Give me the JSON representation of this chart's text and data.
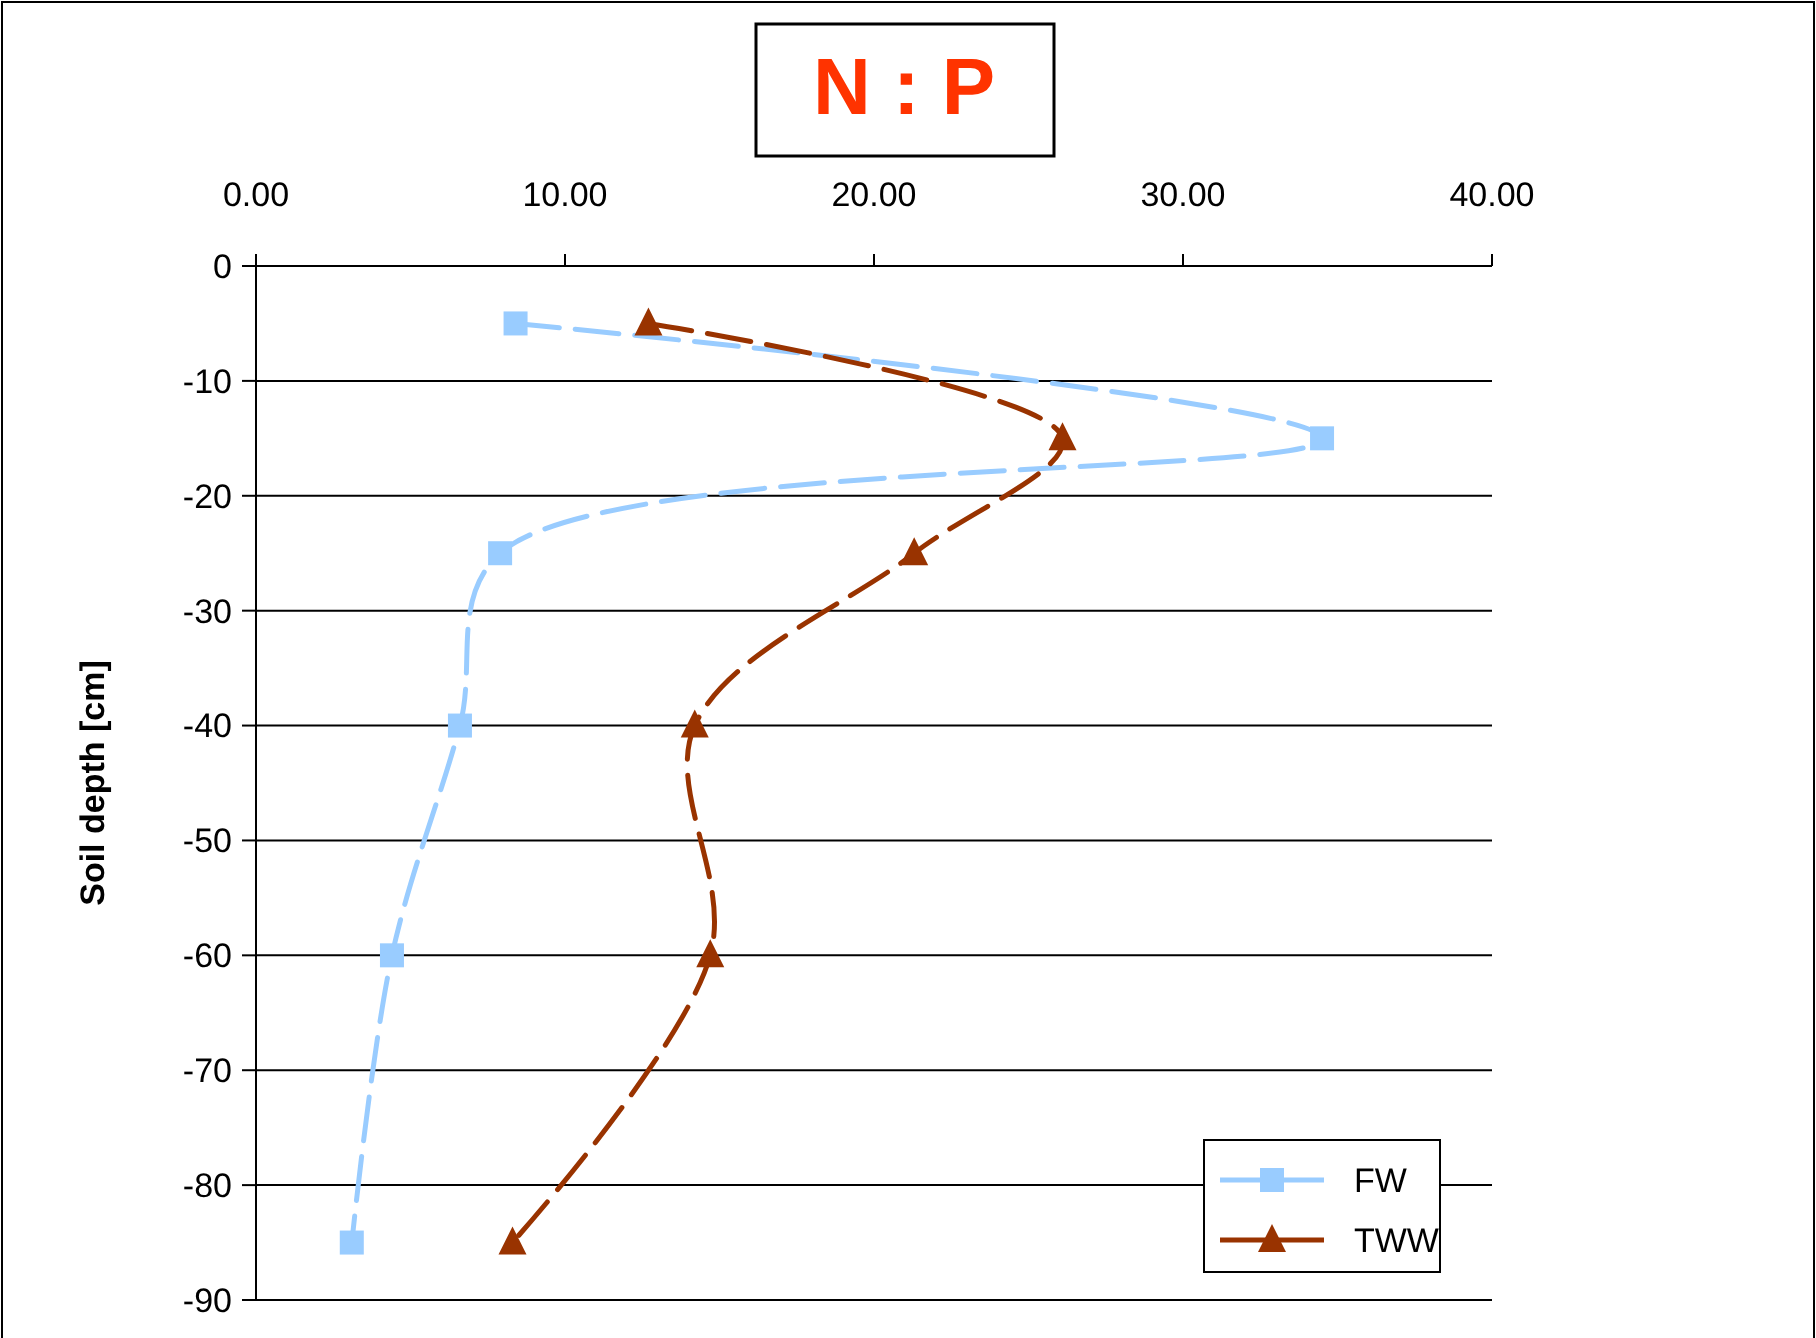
{
  "chart_data": {
    "type": "line",
    "title": "N : P",
    "ylabel": "Soil depth [cm]",
    "xlim": [
      0,
      40
    ],
    "xticks": [
      {
        "value": 0,
        "label": "0.00"
      },
      {
        "value": 10,
        "label": "10.00"
      },
      {
        "value": 20,
        "label": "20.00"
      },
      {
        "value": 30,
        "label": "30.00"
      },
      {
        "value": 40,
        "label": "40.00"
      }
    ],
    "ylim": [
      -90,
      0
    ],
    "yticks": [
      0,
      -10,
      -20,
      -30,
      -40,
      -50,
      -60,
      -70,
      -80,
      -90
    ],
    "grid": "y",
    "legend": "bottom right",
    "line_style": "dashed",
    "series": [
      {
        "name": "FW",
        "color": "#99ccff",
        "marker": "square",
        "x": [
          8.4,
          34.5,
          7.9,
          6.6,
          4.4,
          3.1
        ],
        "values": [
          -5,
          -15,
          -25,
          -40,
          -60,
          -85
        ]
      },
      {
        "name": "TWW",
        "color": "#993300",
        "marker": "triangle",
        "x": [
          12.7,
          26.1,
          21.3,
          14.2,
          14.7,
          8.3
        ],
        "values": [
          -5,
          -15,
          -25,
          -40,
          -60,
          -85
        ]
      }
    ]
  }
}
